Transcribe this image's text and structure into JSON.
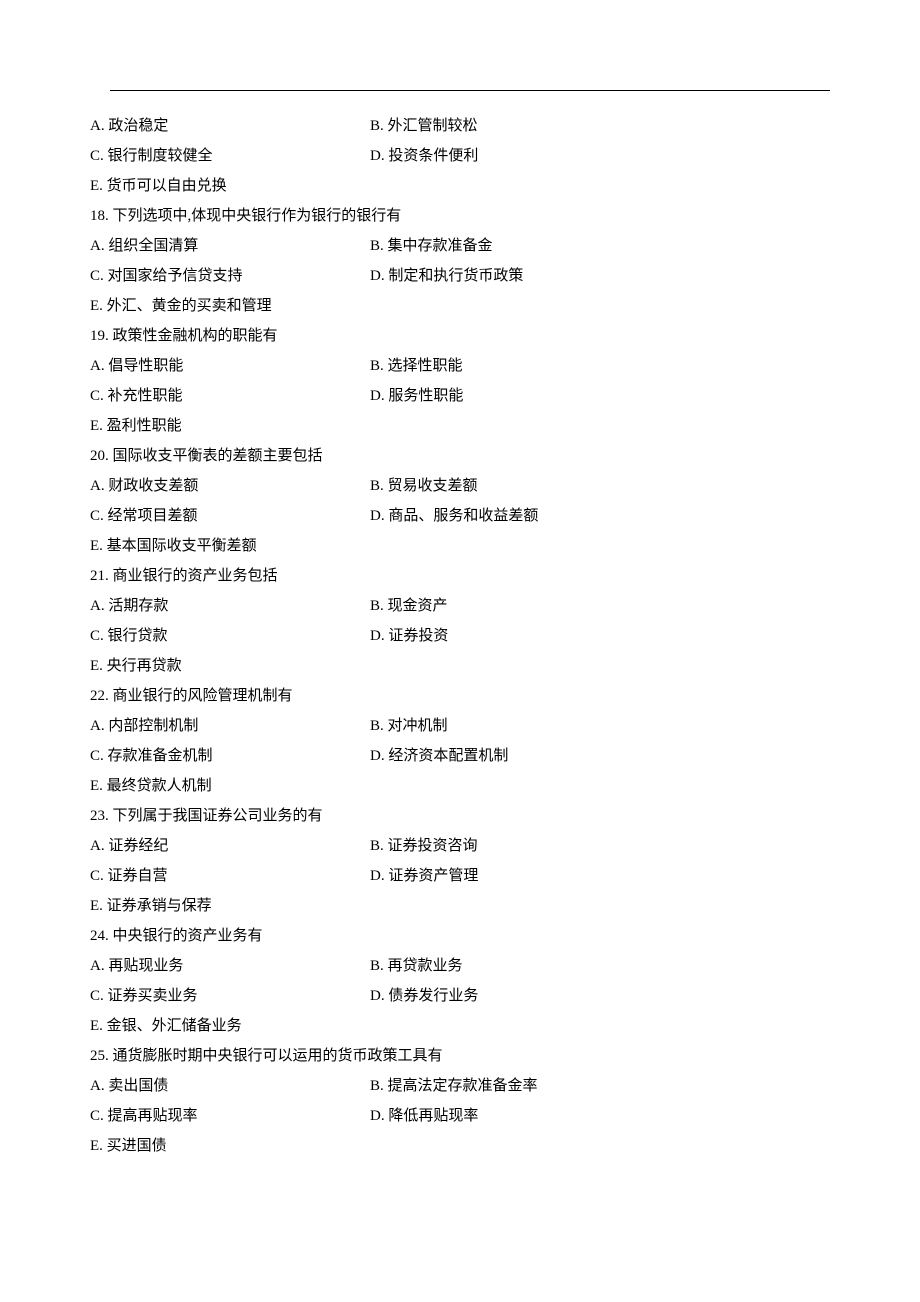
{
  "questions": [
    {
      "number": "",
      "text": "",
      "options": [
        {
          "label": "A. 政治稳定",
          "label2": "B. 外汇管制较松"
        },
        {
          "label": "C. 银行制度较健全",
          "label2": "D. 投资条件便利"
        },
        {
          "label": "E. 货币可以自由兑换"
        }
      ]
    },
    {
      "number": "18.",
      "text": "下列选项中,体现中央银行作为银行的银行有",
      "options": [
        {
          "label": "A. 组织全国清算",
          "label2": "B. 集中存款准备金"
        },
        {
          "label": "C. 对国家给予信贷支持",
          "label2": "D. 制定和执行货币政策"
        },
        {
          "label": "E. 外汇、黄金的买卖和管理"
        }
      ]
    },
    {
      "number": "19.",
      "text": "政策性金融机构的职能有",
      "options": [
        {
          "label": "A. 倡导性职能",
          "label2": "B. 选择性职能"
        },
        {
          "label": "C. 补充性职能",
          "label2": "D. 服务性职能"
        },
        {
          "label": "E. 盈利性职能"
        }
      ]
    },
    {
      "number": "20.",
      "text": "国际收支平衡表的差额主要包括",
      "options": [
        {
          "label": "A. 财政收支差额",
          "label2": "B. 贸易收支差额"
        },
        {
          "label": "C. 经常项目差额",
          "label2": "D. 商品、服务和收益差额"
        },
        {
          "label": "E. 基本国际收支平衡差额"
        }
      ]
    },
    {
      "number": "21.",
      "text": "商业银行的资产业务包括",
      "options": [
        {
          "label": "A. 活期存款",
          "label2": "B. 现金资产"
        },
        {
          "label": "C. 银行贷款",
          "label2": "D. 证券投资"
        },
        {
          "label": "E. 央行再贷款"
        }
      ]
    },
    {
      "number": "22.",
      "text": "商业银行的风险管理机制有",
      "options": [
        {
          "label": "A. 内部控制机制",
          "label2": "B. 对冲机制"
        },
        {
          "label": "C. 存款准备金机制",
          "label2": "D. 经济资本配置机制"
        },
        {
          "label": "E. 最终贷款人机制"
        }
      ]
    },
    {
      "number": "23.",
      "text": "下列属于我国证券公司业务的有",
      "options": [
        {
          "label": "A. 证券经纪",
          "label2": "B. 证券投资咨询"
        },
        {
          "label": "C. 证券自营",
          "label2": "D. 证券资产管理"
        },
        {
          "label": "E. 证券承销与保荐"
        }
      ]
    },
    {
      "number": "24.",
      "text": "中央银行的资产业务有",
      "options": [
        {
          "label": "A. 再贴现业务",
          "label2": "B. 再贷款业务"
        },
        {
          "label": "C. 证券买卖业务",
          "label2": "D. 债券发行业务"
        },
        {
          "label": "E. 金银、外汇储备业务"
        }
      ]
    },
    {
      "number": "25.",
      "text": "通货膨胀时期中央银行可以运用的货币政策工具有",
      "options": [
        {
          "label": "A. 卖出国债",
          "label2": "B. 提高法定存款准备金率"
        },
        {
          "label": "C. 提高再贴现率",
          "label2": "D. 降低再贴现率"
        },
        {
          "label": "E. 买进国债"
        }
      ]
    }
  ]
}
